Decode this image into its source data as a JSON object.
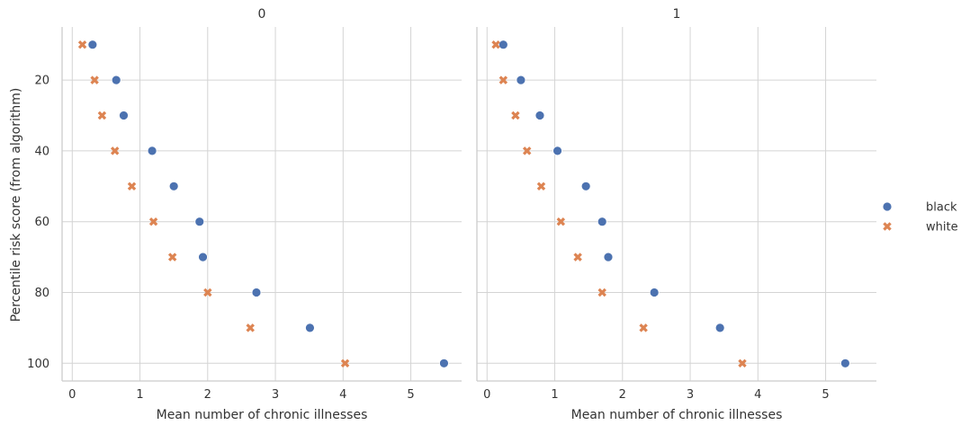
{
  "chart_data": {
    "type": "scatter",
    "facet_variable_values": [
      "0",
      "1"
    ],
    "xlabel": "Mean number of chronic illnesses",
    "ylabel": "Percentile risk score (from algorithm)",
    "xlim": [
      -0.15,
      5.75
    ],
    "ylim": [
      105,
      5
    ],
    "y_inverted": true,
    "xticks": [
      0,
      1,
      2,
      3,
      4,
      5
    ],
    "yticks": [
      20,
      40,
      60,
      80,
      100
    ],
    "grid": true,
    "legend": {
      "placement": "right",
      "entries": [
        "black",
        "white"
      ]
    },
    "colors": {
      "black": "#4c72b0",
      "white": "#dd8452"
    },
    "markers": {
      "black": "circle",
      "white": "x"
    },
    "panels": [
      {
        "title": "0",
        "series": [
          {
            "name": "black",
            "points": [
              [
                0.3,
                10
              ],
              [
                0.65,
                20
              ],
              [
                0.76,
                30
              ],
              [
                1.18,
                40
              ],
              [
                1.5,
                50
              ],
              [
                1.88,
                60
              ],
              [
                1.93,
                70
              ],
              [
                2.72,
                80
              ],
              [
                3.51,
                90
              ],
              [
                5.49,
                100
              ]
            ]
          },
          {
            "name": "white",
            "points": [
              [
                0.15,
                10
              ],
              [
                0.33,
                20
              ],
              [
                0.44,
                30
              ],
              [
                0.63,
                40
              ],
              [
                0.88,
                50
              ],
              [
                1.2,
                60
              ],
              [
                1.48,
                70
              ],
              [
                2.0,
                80
              ],
              [
                2.63,
                90
              ],
              [
                4.03,
                100
              ]
            ]
          }
        ]
      },
      {
        "title": "1",
        "series": [
          {
            "name": "black",
            "points": [
              [
                0.24,
                10
              ],
              [
                0.5,
                20
              ],
              [
                0.78,
                30
              ],
              [
                1.04,
                40
              ],
              [
                1.46,
                50
              ],
              [
                1.7,
                60
              ],
              [
                1.79,
                70
              ],
              [
                2.47,
                80
              ],
              [
                3.44,
                90
              ],
              [
                5.29,
                100
              ]
            ]
          },
          {
            "name": "white",
            "points": [
              [
                0.13,
                10
              ],
              [
                0.24,
                20
              ],
              [
                0.42,
                30
              ],
              [
                0.59,
                40
              ],
              [
                0.8,
                50
              ],
              [
                1.09,
                60
              ],
              [
                1.34,
                70
              ],
              [
                1.7,
                80
              ],
              [
                2.31,
                90
              ],
              [
                3.77,
                100
              ]
            ]
          }
        ]
      }
    ]
  }
}
